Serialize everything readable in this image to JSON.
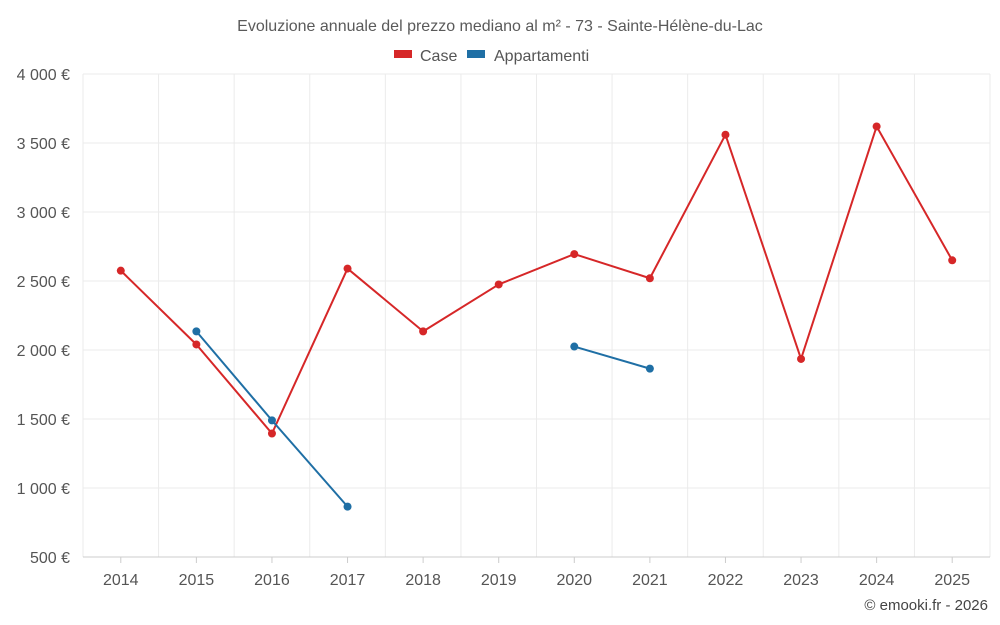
{
  "chart_data": {
    "type": "line",
    "title": "Evoluzione annuale del prezzo mediano al m² - 73 - Sainte-Hélène-du-Lac",
    "categories": [
      "2014",
      "2015",
      "2016",
      "2017",
      "2018",
      "2019",
      "2020",
      "2021",
      "2022",
      "2023",
      "2024",
      "2025"
    ],
    "series": [
      {
        "name": "Case",
        "color": "#d62728",
        "values": [
          2575,
          2040,
          1395,
          2590,
          2135,
          2475,
          2695,
          2520,
          3560,
          1935,
          3620,
          2650
        ]
      },
      {
        "name": "Appartamenti",
        "color": "#1f6fa5",
        "values": [
          null,
          2135,
          1490,
          865,
          null,
          null,
          2025,
          1865,
          null,
          null,
          null,
          null
        ]
      }
    ],
    "ylim": [
      500,
      4000
    ],
    "yticks": [
      500,
      1000,
      1500,
      2000,
      2500,
      3000,
      3500,
      4000
    ],
    "ytick_labels": [
      "500 €",
      "1 000 €",
      "1 500 €",
      "2 000 €",
      "2 500 €",
      "3 000 €",
      "3 500 €",
      "4 000 €"
    ],
    "legend_position": "top-center",
    "grid": true,
    "credit": "© emooki.fr - 2026"
  }
}
